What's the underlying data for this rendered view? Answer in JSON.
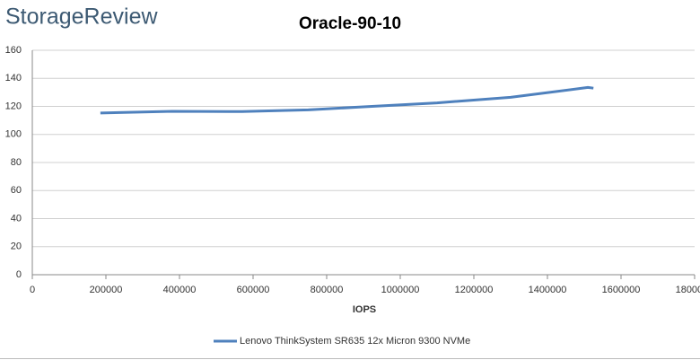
{
  "brand": "StorageReview",
  "chart_data": {
    "type": "line",
    "title": "Oracle-90-10",
    "xlabel": "IOPS",
    "x": [
      185000,
      380000,
      570000,
      750000,
      900000,
      1100000,
      1300000,
      1510000,
      1525000
    ],
    "series": [
      {
        "name": "Lenovo ThinkSystem SR635 12x Micron 9300 NVMe",
        "color": "#4f81bd",
        "values": [
          115.3,
          116.5,
          116.3,
          117.5,
          119.7,
          122.5,
          126.5,
          133.5,
          133
        ]
      }
    ],
    "xlim": [
      0,
      1800000
    ],
    "xticks": [
      0,
      200000,
      400000,
      600000,
      800000,
      1000000,
      1200000,
      1400000,
      1600000,
      1800000
    ],
    "ylim": [
      0,
      160
    ],
    "yticks": [
      0,
      20,
      40,
      60,
      80,
      100,
      120,
      140,
      160
    ],
    "grid": true,
    "legend": "bottom"
  }
}
